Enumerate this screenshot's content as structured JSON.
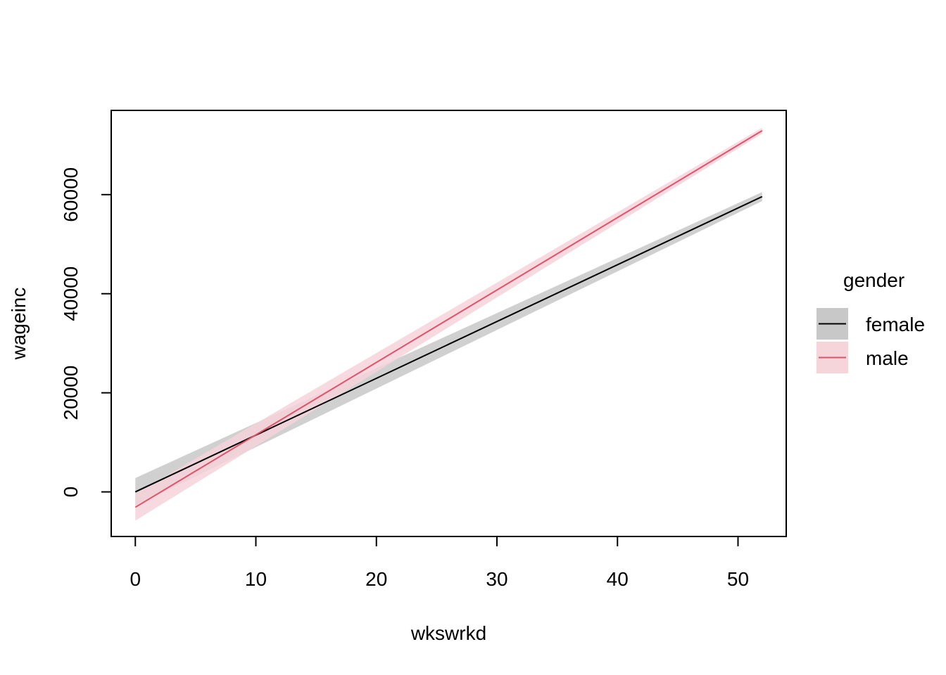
{
  "chart_data": {
    "type": "line",
    "title": "",
    "xlabel": "wkswrkd",
    "ylabel": "wageinc",
    "xlim": [
      -2,
      54
    ],
    "ylim": [
      -9000,
      77000
    ],
    "x_ticks": [
      0,
      10,
      20,
      30,
      40,
      50
    ],
    "y_ticks": [
      0,
      20000,
      40000,
      60000
    ],
    "grid": false,
    "legend": {
      "title": "gender",
      "placement": "right"
    },
    "series": [
      {
        "name": "female",
        "color": "#000000",
        "band_color": "#c8c8c8",
        "x": [
          0,
          52
        ],
        "y": [
          0,
          59600
        ],
        "ci_lower": [
          -2800,
          58700
        ],
        "ci_upper": [
          2800,
          60500
        ]
      },
      {
        "name": "male",
        "color": "#df536b",
        "band_color": "#f5d4da",
        "x": [
          0,
          52
        ],
        "y": [
          -3100,
          72900
        ],
        "ci_lower": [
          -5800,
          72300
        ],
        "ci_upper": [
          -400,
          73500
        ]
      }
    ]
  }
}
